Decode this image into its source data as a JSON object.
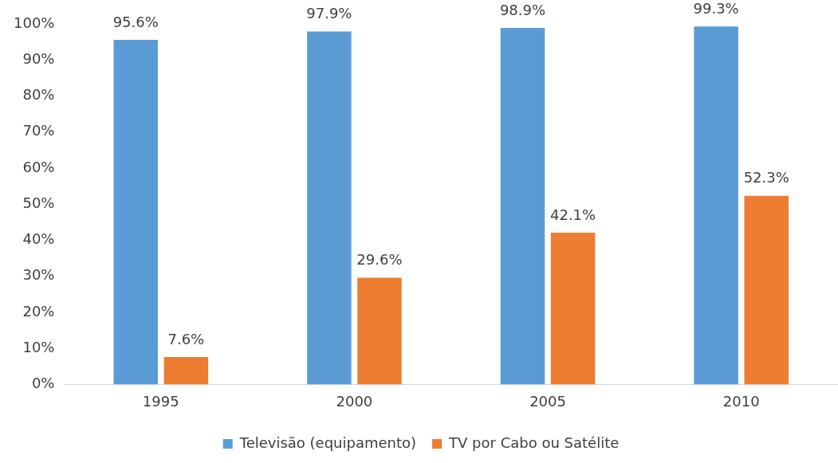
{
  "chart_data": {
    "type": "bar",
    "categories": [
      "1995",
      "2000",
      "2005",
      "2010"
    ],
    "series": [
      {
        "name": "Televisão (equipamento)",
        "color": "#5b9bd5",
        "values": [
          95.6,
          97.9,
          98.9,
          99.3
        ],
        "value_labels": [
          "95.6%",
          "97.9%",
          "98.9%",
          "99.3%"
        ]
      },
      {
        "name": "TV por Cabo ou Satélite",
        "color": "#ed7d31",
        "values": [
          7.6,
          29.6,
          42.1,
          52.3
        ],
        "value_labels": [
          "7.6%",
          "29.6%",
          "42.1%",
          "52.3%"
        ]
      }
    ],
    "ylim": [
      0,
      100
    ],
    "yticks": [
      {
        "value": 0,
        "label": "0%"
      },
      {
        "value": 10,
        "label": "10%"
      },
      {
        "value": 20,
        "label": "20%"
      },
      {
        "value": 30,
        "label": "30%"
      },
      {
        "value": 40,
        "label": "40%"
      },
      {
        "value": 50,
        "label": "50%"
      },
      {
        "value": 60,
        "label": "60%"
      },
      {
        "value": 70,
        "label": "70%"
      },
      {
        "value": 80,
        "label": "80%"
      },
      {
        "value": 90,
        "label": "90%"
      },
      {
        "value": 100,
        "label": "100%"
      }
    ],
    "legend": "bottom"
  }
}
